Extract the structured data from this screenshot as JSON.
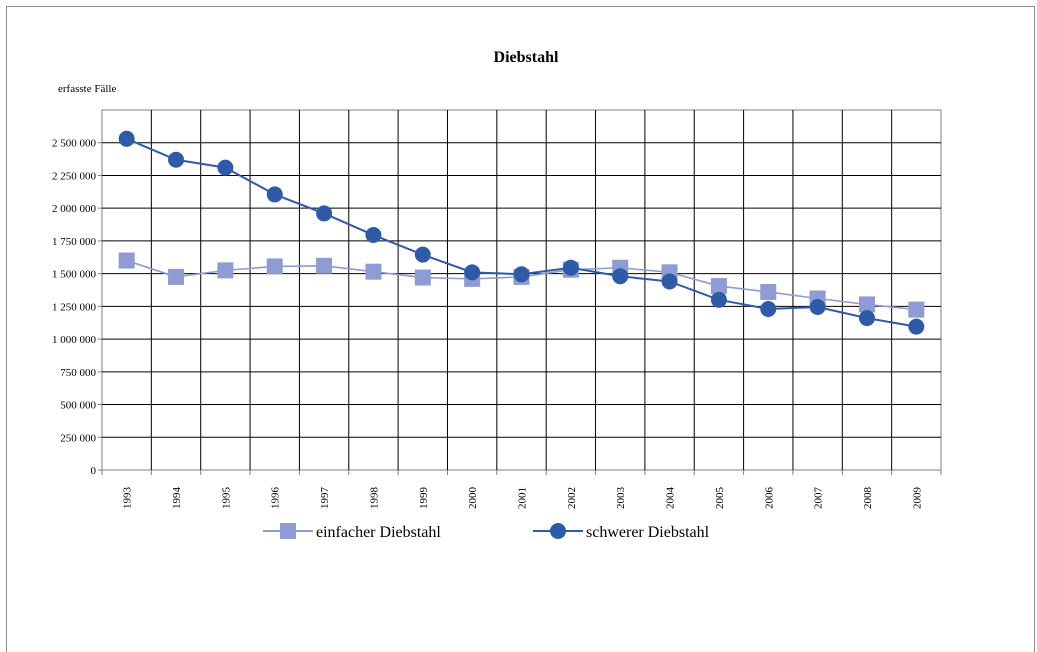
{
  "chart_data": {
    "type": "line",
    "title": "Diebstahl",
    "ylabel": "erfasste Fälle",
    "xlabel": "",
    "ylim": [
      0,
      2750000
    ],
    "y_ticks": [
      0,
      250000,
      500000,
      750000,
      1000000,
      1250000,
      1500000,
      1750000,
      2000000,
      2250000,
      2500000
    ],
    "y_tick_labels": [
      "0",
      "250 000",
      "500 000",
      "750 000",
      "1 000 000",
      "1 250 000",
      "1 500 000",
      "1 750 000",
      "2 000 000",
      "2 250 000",
      "2 500 000"
    ],
    "grid": true,
    "legend_position": "bottom",
    "categories": [
      "1993",
      "1994",
      "1995",
      "1996",
      "1997",
      "1998",
      "1999",
      "2000",
      "2001",
      "2002",
      "2003",
      "2004",
      "2005",
      "2006",
      "2007",
      "2008",
      "2009"
    ],
    "series": [
      {
        "name": "einfacher Diebstahl",
        "marker": "square",
        "color": "#8f9bd3",
        "values": [
          1600000,
          1475000,
          1525000,
          1555000,
          1560000,
          1515000,
          1470000,
          1460000,
          1475000,
          1530000,
          1545000,
          1510000,
          1405000,
          1360000,
          1310000,
          1265000,
          1225000
        ]
      },
      {
        "name": "schwerer Diebstahl",
        "marker": "circle",
        "color": "#2f5aa8",
        "values": [
          2530000,
          2370000,
          2310000,
          2105000,
          1960000,
          1795000,
          1645000,
          1510000,
          1495000,
          1545000,
          1480000,
          1440000,
          1300000,
          1230000,
          1245000,
          1160000,
          1095000
        ]
      }
    ]
  }
}
